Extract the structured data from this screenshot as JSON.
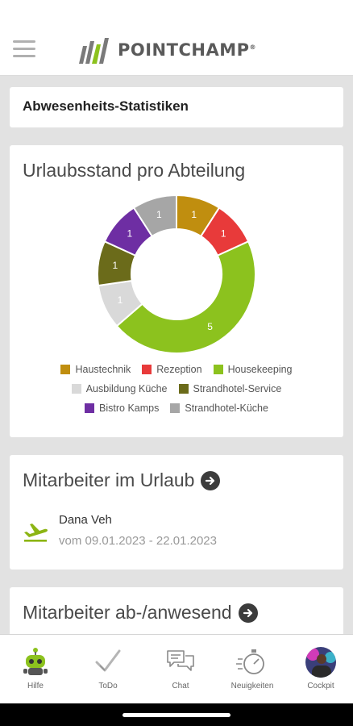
{
  "app": {
    "brand": "POINTCHAMP",
    "brand_mark": "®"
  },
  "cards": {
    "absence_stats_title": "Abwesenheits-Statistiken",
    "chart_title": "Urlaubsstand pro Abteilung",
    "vacation_title": "Mitarbeiter im Urlaub",
    "presence_title": "Mitarbeiter ab-/anwesend"
  },
  "vacation": {
    "employee_name": "Dana Veh",
    "employee_dates": "vom 09.01.2023 - 22.01.2023"
  },
  "chart_data": {
    "type": "pie",
    "title": "Urlaubsstand pro Abteilung",
    "categories": [
      "Haustechnik",
      "Rezeption",
      "Housekeeping",
      "Ausbildung Küche",
      "Strandhotel-Service",
      "Bistro Kamps",
      "Strandhotel-Küche"
    ],
    "values": [
      1,
      1,
      5,
      1,
      1,
      1,
      1
    ],
    "colors": [
      "#c08e0f",
      "#e83a3a",
      "#8cc21e",
      "#d9d9d9",
      "#6b6b1a",
      "#6e2ea3",
      "#a6a6a6"
    ],
    "slice_order": [
      "Haustechnik",
      "Rezeption",
      "Housekeeping",
      "Ausbildung Küche",
      "Strandhotel-Service",
      "Bistro Kamps",
      "Strandhotel-Küche"
    ],
    "donut": true,
    "legend_position": "bottom"
  },
  "nav": {
    "items": [
      {
        "label": "Hilfe",
        "icon": "robot-help-icon"
      },
      {
        "label": "ToDo",
        "icon": "checkmark-icon"
      },
      {
        "label": "Chat",
        "icon": "chat-bubbles-icon"
      },
      {
        "label": "Neuigkeiten",
        "icon": "stopwatch-icon"
      },
      {
        "label": "Cockpit",
        "icon": "avatar-icon"
      }
    ]
  }
}
